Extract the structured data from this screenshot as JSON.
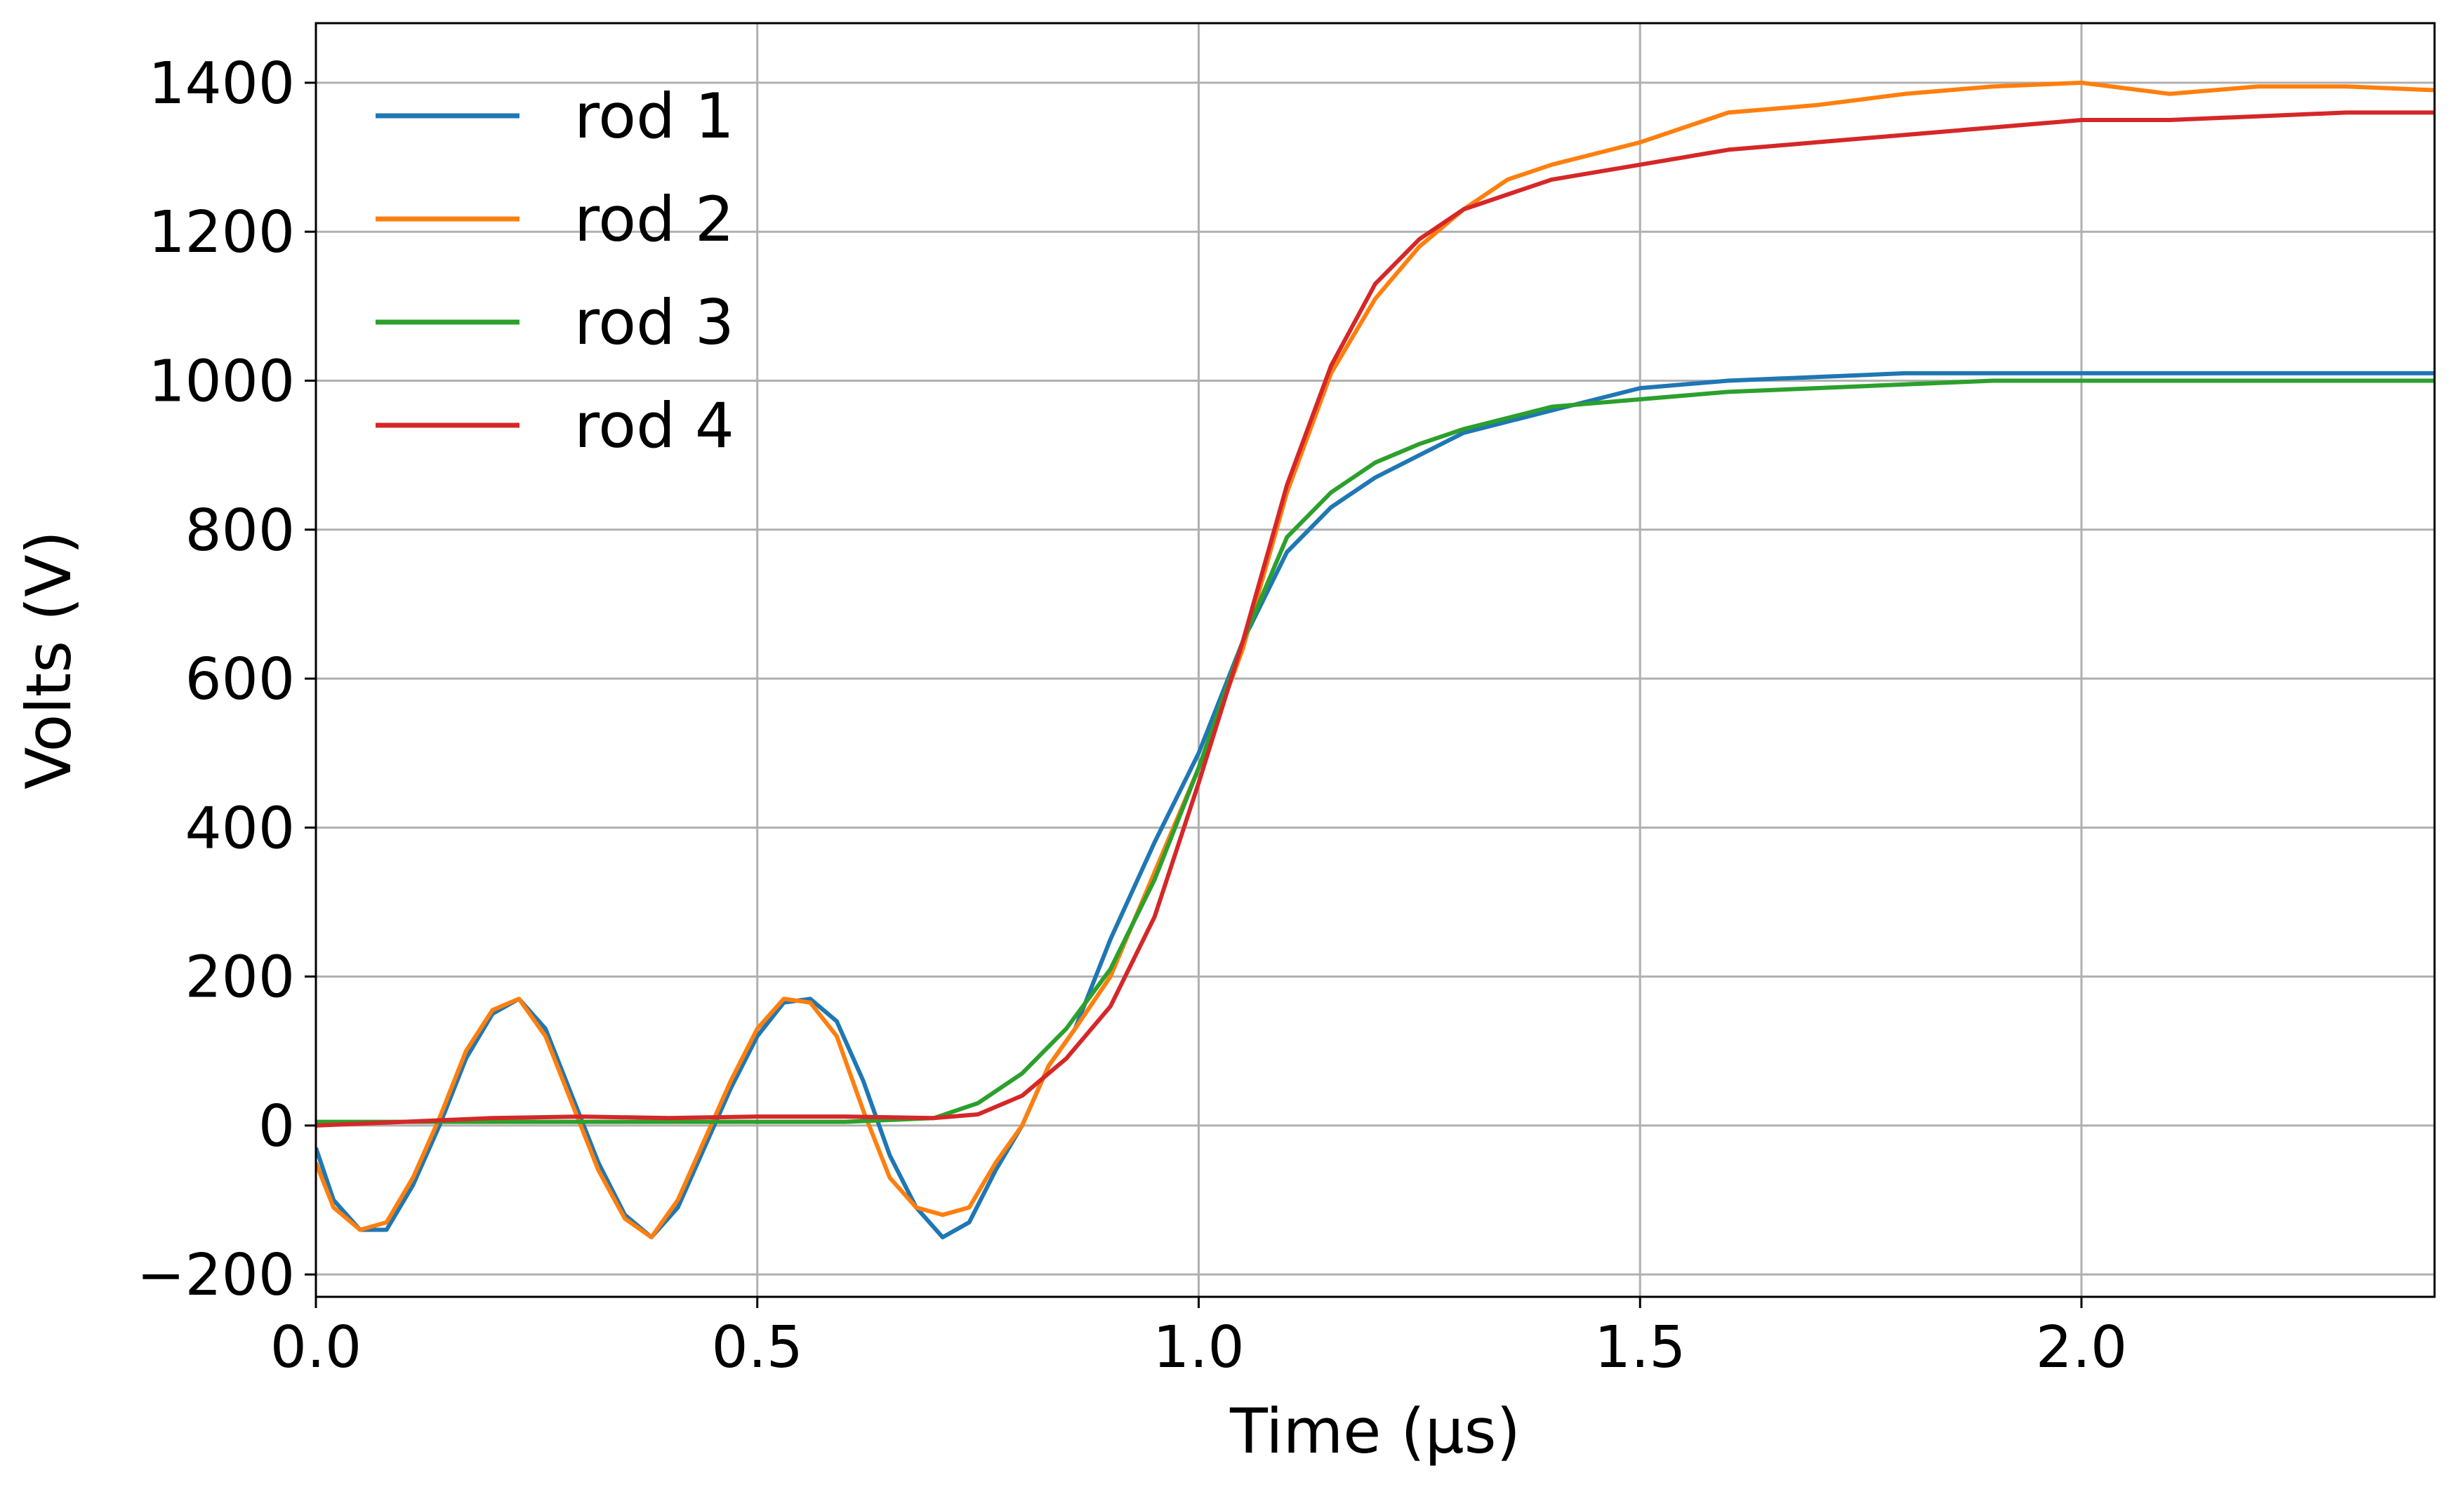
{
  "chart_data": {
    "type": "line",
    "title": "",
    "xlabel": "Time (μs)",
    "ylabel": "Volts (V)",
    "xlim": [
      0.0,
      2.4
    ],
    "ylim": [
      -230,
      1480
    ],
    "xticks": [
      0.0,
      0.5,
      1.0,
      1.5,
      2.0
    ],
    "xtick_labels": [
      "0.0",
      "0.5",
      "1.0",
      "1.5",
      "2.0"
    ],
    "yticks": [
      -200,
      0,
      200,
      400,
      600,
      800,
      1000,
      1200,
      1400
    ],
    "ytick_labels": [
      "−200",
      "0",
      "200",
      "400",
      "600",
      "800",
      "1000",
      "1200",
      "1400"
    ],
    "grid": true,
    "legend_position": "top-left",
    "series": [
      {
        "name": "rod 1",
        "color": "#1f77b4",
        "x": [
          0.0,
          0.02,
          0.05,
          0.08,
          0.11,
          0.14,
          0.17,
          0.2,
          0.23,
          0.26,
          0.29,
          0.32,
          0.35,
          0.38,
          0.41,
          0.44,
          0.47,
          0.5,
          0.53,
          0.56,
          0.59,
          0.62,
          0.65,
          0.68,
          0.71,
          0.74,
          0.77,
          0.8,
          0.83,
          0.86,
          0.9,
          0.95,
          1.0,
          1.05,
          1.1,
          1.15,
          1.2,
          1.3,
          1.4,
          1.5,
          1.6,
          1.7,
          1.8,
          1.9,
          2.0,
          2.1,
          2.2,
          2.3,
          2.4
        ],
        "values": [
          -30,
          -100,
          -140,
          -140,
          -80,
          0,
          90,
          150,
          170,
          130,
          40,
          -50,
          -120,
          -150,
          -110,
          -30,
          50,
          120,
          165,
          170,
          140,
          60,
          -40,
          -110,
          -150,
          -130,
          -60,
          0,
          80,
          130,
          250,
          380,
          500,
          650,
          770,
          830,
          870,
          930,
          960,
          990,
          1000,
          1005,
          1010,
          1010,
          1010,
          1010,
          1010,
          1010,
          1010
        ]
      },
      {
        "name": "rod 2",
        "color": "#ff7f0e",
        "x": [
          0.0,
          0.02,
          0.05,
          0.08,
          0.11,
          0.14,
          0.17,
          0.2,
          0.23,
          0.26,
          0.29,
          0.32,
          0.35,
          0.38,
          0.41,
          0.44,
          0.47,
          0.5,
          0.53,
          0.56,
          0.59,
          0.62,
          0.65,
          0.68,
          0.71,
          0.74,
          0.77,
          0.8,
          0.83,
          0.86,
          0.9,
          0.95,
          1.0,
          1.05,
          1.1,
          1.15,
          1.2,
          1.25,
          1.3,
          1.35,
          1.4,
          1.5,
          1.6,
          1.7,
          1.8,
          1.9,
          2.0,
          2.1,
          2.2,
          2.3,
          2.4
        ],
        "values": [
          -50,
          -110,
          -140,
          -130,
          -70,
          10,
          100,
          155,
          170,
          120,
          30,
          -60,
          -125,
          -150,
          -100,
          -20,
          60,
          130,
          170,
          165,
          120,
          20,
          -70,
          -110,
          -120,
          -110,
          -50,
          0,
          80,
          130,
          200,
          340,
          480,
          640,
          850,
          1010,
          1110,
          1180,
          1230,
          1270,
          1290,
          1320,
          1360,
          1370,
          1385,
          1395,
          1400,
          1385,
          1395,
          1395,
          1390
        ]
      },
      {
        "name": "rod 3",
        "color": "#2ca02c",
        "x": [
          0.0,
          0.1,
          0.2,
          0.3,
          0.4,
          0.5,
          0.6,
          0.7,
          0.75,
          0.8,
          0.85,
          0.9,
          0.95,
          1.0,
          1.05,
          1.1,
          1.15,
          1.2,
          1.25,
          1.3,
          1.4,
          1.5,
          1.6,
          1.7,
          1.8,
          1.9,
          2.0,
          2.1,
          2.2,
          2.3,
          2.4
        ],
        "values": [
          5,
          5,
          5,
          5,
          5,
          5,
          5,
          10,
          30,
          70,
          130,
          210,
          330,
          480,
          650,
          790,
          850,
          890,
          915,
          935,
          965,
          975,
          985,
          990,
          995,
          1000,
          1000,
          1000,
          1000,
          1000,
          1000
        ]
      },
      {
        "name": "rod 4",
        "color": "#d62728",
        "x": [
          0.0,
          0.1,
          0.2,
          0.3,
          0.4,
          0.5,
          0.6,
          0.7,
          0.75,
          0.8,
          0.85,
          0.9,
          0.95,
          1.0,
          1.05,
          1.1,
          1.15,
          1.2,
          1.25,
          1.3,
          1.35,
          1.4,
          1.5,
          1.6,
          1.7,
          1.8,
          1.9,
          2.0,
          2.1,
          2.2,
          2.3,
          2.4
        ],
        "values": [
          0,
          5,
          10,
          12,
          10,
          12,
          12,
          10,
          15,
          40,
          90,
          160,
          280,
          460,
          650,
          860,
          1020,
          1130,
          1190,
          1230,
          1250,
          1270,
          1290,
          1310,
          1320,
          1330,
          1340,
          1350,
          1350,
          1355,
          1360,
          1360
        ]
      }
    ]
  }
}
